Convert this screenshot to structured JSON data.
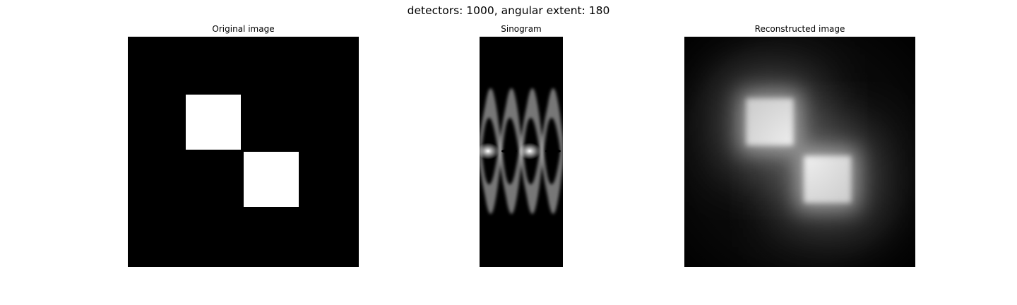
{
  "figure": {
    "suptitle": "detectors: 1000, angular extent: 180"
  },
  "chart_data": [
    {
      "type": "heatmap",
      "title": "Original image",
      "axes": "off",
      "colormap": "gray",
      "content": "two white squares on black background, diagonal arrangement",
      "squares": [
        {
          "x0": 0.25,
          "x1": 0.49,
          "y0": 0.25,
          "y1": 0.49
        },
        {
          "x0": 0.5,
          "x1": 0.74,
          "y0": 0.5,
          "y1": 0.74
        }
      ]
    },
    {
      "type": "heatmap",
      "title": "Sinogram",
      "axes": "off",
      "colormap": "gray"
    },
    {
      "type": "heatmap",
      "title": "Reconstructed image",
      "axes": "off",
      "colormap": "gray",
      "content": "blurred reconstruction of two squares"
    }
  ]
}
